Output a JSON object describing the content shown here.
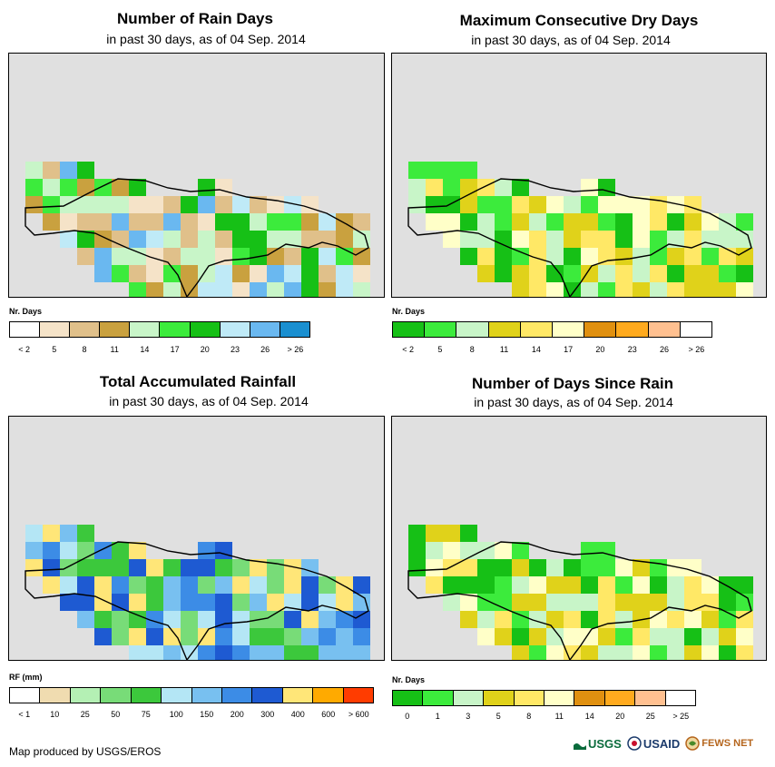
{
  "chart_data": [
    {
      "type": "heatmap",
      "title": "Number of Rain Days",
      "subtitle": "in past 30 days, as of 04 Sep. 2014",
      "legend_title": "Nr. Days",
      "legend_labels": [
        "< 2",
        "5",
        "8",
        "11",
        "14",
        "17",
        "20",
        "23",
        "26",
        "> 26"
      ],
      "legend_colors": [
        "#ffffff",
        "#f5e3c8",
        "#e0c08a",
        "#c9a13f",
        "#c8f5c8",
        "#3ceb3c",
        "#16c016",
        "#bfeaf7",
        "#6ab8f0",
        "#1a8fd0"
      ]
    },
    {
      "type": "heatmap",
      "title": "Maximum Consecutive Dry Days",
      "subtitle": "in past 30 days, as of 04 Sep. 2014",
      "legend_title": "Nr. Days",
      "legend_labels": [
        "< 2",
        "5",
        "8",
        "11",
        "14",
        "17",
        "20",
        "23",
        "26",
        "> 26"
      ],
      "legend_colors": [
        "#16c016",
        "#3ceb3c",
        "#c8f5c8",
        "#e0d21a",
        "#ffe866",
        "#ffffc8",
        "#e09010",
        "#ffaa1e",
        "#ffc090",
        "#ffffff"
      ]
    },
    {
      "type": "heatmap",
      "title": "Total Accumulated Rainfall",
      "subtitle": "in past 30 days, as of 04 Sep. 2014",
      "legend_title": "RF (mm)",
      "legend_labels": [
        "< 1",
        "10",
        "25",
        "50",
        "75",
        "100",
        "150",
        "200",
        "300",
        "400",
        "600",
        "> 600"
      ],
      "legend_colors": [
        "#ffffff",
        "#f0dcb0",
        "#b4f0b4",
        "#78dc78",
        "#3cc83c",
        "#b4e6f5",
        "#78c0f0",
        "#3c8ce6",
        "#1e5ad2",
        "#ffe678",
        "#ffaa00",
        "#ff3c00"
      ]
    },
    {
      "type": "heatmap",
      "title": "Number of Days Since Rain",
      "subtitle": "in past 30 days, as of 04 Sep. 2014",
      "legend_title": "Nr. Days",
      "legend_labels": [
        "0",
        "1",
        "3",
        "5",
        "8",
        "11",
        "14",
        "20",
        "25",
        "> 25"
      ],
      "legend_colors": [
        "#16c016",
        "#3ceb3c",
        "#c8f5c8",
        "#e0d21a",
        "#ffe866",
        "#ffffc8",
        "#e09010",
        "#ffaa1e",
        "#ffc090",
        "#ffffff"
      ]
    }
  ],
  "footer": {
    "credit": "Map produced by USGS/EROS",
    "logos": [
      "USGS",
      "USAID",
      "FEWS NET"
    ]
  }
}
